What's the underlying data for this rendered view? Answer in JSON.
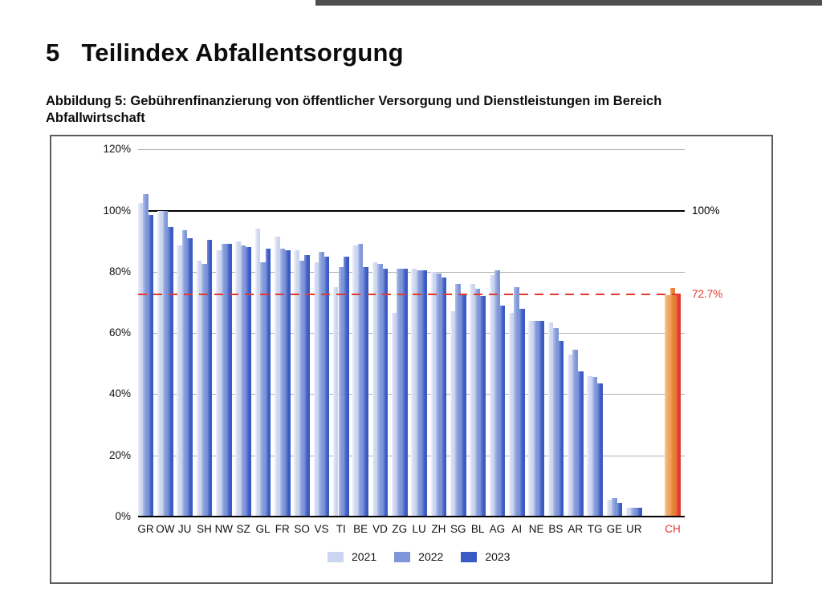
{
  "page": {
    "heading": {
      "number": "5",
      "title": "Teilindex Abfallentsorgung"
    },
    "caption": {
      "line1": "Abbildung 5: Gebührenfinanzierung von öffentlicher Versorgung und Dienstleistungen im Bereich",
      "line2": "Abfallwirtschaft"
    }
  },
  "chart_data": {
    "type": "bar",
    "title": "",
    "xlabel": "",
    "ylabel": "",
    "ylim": [
      0,
      120
    ],
    "grid": true,
    "legend_position": "bottom-center",
    "ytick_values": [
      0,
      20,
      40,
      60,
      80,
      100,
      120
    ],
    "ytick_labels": [
      "0%",
      "20%",
      "40%",
      "60%",
      "80%",
      "100%",
      "120%"
    ],
    "categories": [
      "GR",
      "OW",
      "JU",
      "SH",
      "NW",
      "SZ",
      "GL",
      "FR",
      "SO",
      "VS",
      "TI",
      "BE",
      "VD",
      "ZG",
      "LU",
      "ZH",
      "SG",
      "BL",
      "AG",
      "AI",
      "NE",
      "BS",
      "AR",
      "TG",
      "GE",
      "UR"
    ],
    "series": [
      {
        "name": "2021",
        "color": "#cbd5ef",
        "color_light": "#eef1f9",
        "values": [
          102.5,
          100,
          88.5,
          83.5,
          87,
          90,
          94,
          91.5,
          87,
          83,
          75,
          88.5,
          83,
          66.5,
          81,
          80,
          67,
          76,
          79,
          66.5,
          64,
          63.5,
          53,
          46,
          5.5,
          3
        ]
      },
      {
        "name": "2022",
        "color": "#7e97d8",
        "color_light": "#b3c0e8",
        "values": [
          105.5,
          100,
          93.5,
          82.5,
          89,
          88.5,
          83,
          87.5,
          83.5,
          86.5,
          81.5,
          89,
          82.5,
          81,
          80.5,
          79.5,
          76,
          74.5,
          80.5,
          75,
          64,
          61.5,
          54.5,
          45.5,
          6,
          3
        ]
      },
      {
        "name": "2023",
        "color": "#3a5bc3",
        "color_light": "#7d90d8",
        "values": [
          98.5,
          94.5,
          91,
          90.5,
          89,
          88,
          87.5,
          87,
          85.5,
          85,
          85,
          81.5,
          81,
          81,
          80.5,
          78,
          72.5,
          72,
          69,
          68,
          64,
          57.5,
          47.5,
          43.5,
          4.5,
          3
        ]
      }
    ],
    "highlight_group": {
      "label": "CH",
      "label_color": "#e0392e",
      "values": [
        72.3,
        74.6,
        72.7
      ],
      "colors": [
        "#f0a860",
        "#e5812f",
        "#de3d2c"
      ],
      "colors_light": [
        "#f8cf9e",
        "#f0a45c",
        "#ef7c5e"
      ]
    },
    "reference_lines": [
      {
        "value": 100,
        "label": "100%",
        "color": "#000000",
        "style": "solid"
      },
      {
        "value": 72.7,
        "label": "72.7%",
        "color": "#e0392e",
        "style": "dashed"
      }
    ],
    "legend": [
      "2021",
      "2022",
      "2023"
    ]
  }
}
